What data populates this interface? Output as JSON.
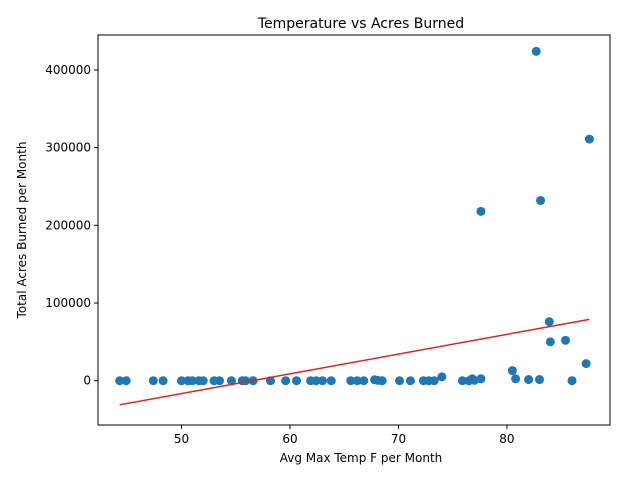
{
  "chart_data": {
    "type": "scatter",
    "title": "Temperature vs Acres Burned",
    "xlabel": "Avg Max Temp F per Month",
    "ylabel": "Total Acres Burned per Month",
    "xlim": [
      42.3,
      89.5
    ],
    "ylim": [
      -57000,
      445000
    ],
    "xticks": [
      50,
      60,
      70,
      80
    ],
    "yticks": [
      0,
      100000,
      200000,
      300000,
      400000
    ],
    "grid": false,
    "legend": "none",
    "marker_color": "#1f77b4",
    "trend_color": "#d62728",
    "trend_line": {
      "x": [
        44.3,
        87.6
      ],
      "y": [
        -31000,
        79000
      ]
    },
    "points": [
      {
        "x": 44.3,
        "y": 0
      },
      {
        "x": 44.9,
        "y": 0
      },
      {
        "x": 47.4,
        "y": 0
      },
      {
        "x": 48.3,
        "y": 0
      },
      {
        "x": 50.0,
        "y": 0
      },
      {
        "x": 50.6,
        "y": 0
      },
      {
        "x": 51.0,
        "y": 0
      },
      {
        "x": 51.6,
        "y": 0
      },
      {
        "x": 52.0,
        "y": 0
      },
      {
        "x": 53.0,
        "y": 0
      },
      {
        "x": 53.5,
        "y": 0
      },
      {
        "x": 54.6,
        "y": 0
      },
      {
        "x": 55.6,
        "y": 0
      },
      {
        "x": 55.9,
        "y": 0
      },
      {
        "x": 56.6,
        "y": 0
      },
      {
        "x": 58.2,
        "y": 0
      },
      {
        "x": 59.6,
        "y": 0
      },
      {
        "x": 60.6,
        "y": 0
      },
      {
        "x": 61.9,
        "y": 0
      },
      {
        "x": 62.4,
        "y": 0
      },
      {
        "x": 63.0,
        "y": 0
      },
      {
        "x": 63.8,
        "y": 0
      },
      {
        "x": 65.6,
        "y": 0
      },
      {
        "x": 66.2,
        "y": 0
      },
      {
        "x": 66.8,
        "y": 0
      },
      {
        "x": 67.8,
        "y": 1200
      },
      {
        "x": 68.1,
        "y": 500
      },
      {
        "x": 68.5,
        "y": 0
      },
      {
        "x": 70.1,
        "y": 0
      },
      {
        "x": 71.1,
        "y": 0
      },
      {
        "x": 72.3,
        "y": 0
      },
      {
        "x": 72.8,
        "y": 0
      },
      {
        "x": 73.3,
        "y": 0
      },
      {
        "x": 74.0,
        "y": 5000
      },
      {
        "x": 75.9,
        "y": 0
      },
      {
        "x": 76.5,
        "y": 0
      },
      {
        "x": 76.8,
        "y": 2500
      },
      {
        "x": 77.0,
        "y": 500
      },
      {
        "x": 77.6,
        "y": 2500
      },
      {
        "x": 77.6,
        "y": 218000
      },
      {
        "x": 80.5,
        "y": 13000
      },
      {
        "x": 80.8,
        "y": 2500
      },
      {
        "x": 82.0,
        "y": 1500
      },
      {
        "x": 82.7,
        "y": 424000
      },
      {
        "x": 83.0,
        "y": 1500
      },
      {
        "x": 83.1,
        "y": 232000
      },
      {
        "x": 83.9,
        "y": 76000
      },
      {
        "x": 84.0,
        "y": 50000
      },
      {
        "x": 85.4,
        "y": 52000
      },
      {
        "x": 86.0,
        "y": 0
      },
      {
        "x": 87.3,
        "y": 22000
      },
      {
        "x": 87.6,
        "y": 311000
      }
    ]
  }
}
